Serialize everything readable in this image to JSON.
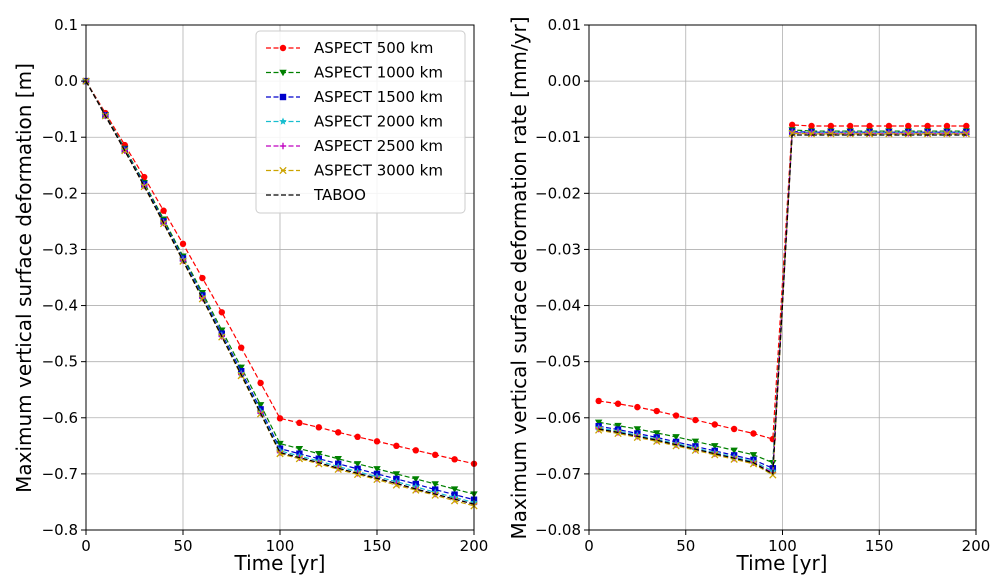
{
  "chart_data": [
    {
      "type": "line",
      "xlabel": "Time [yr]",
      "ylabel": "Maximum vertical surface deformation [m]",
      "xlim": [
        0,
        200
      ],
      "ylim": [
        -0.8,
        0.1
      ],
      "xticks": [
        "0",
        "50",
        "100",
        "150",
        "200"
      ],
      "yticks": [
        "0.1",
        "0.0",
        "−0.1",
        "−0.2",
        "−0.3",
        "−0.4",
        "−0.5",
        "−0.6",
        "−0.7",
        "−0.8"
      ],
      "grid": true,
      "legend_position": "top-right",
      "x": [
        0,
        10,
        20,
        30,
        40,
        50,
        60,
        70,
        80,
        90,
        100,
        110,
        120,
        130,
        140,
        150,
        160,
        170,
        180,
        190,
        200
      ],
      "series": [
        {
          "name": "ASPECT 500 km",
          "color": "#ff0000",
          "marker": "circle",
          "values": [
            0,
            -0.057,
            -0.114,
            -0.171,
            -0.231,
            -0.29,
            -0.351,
            -0.412,
            -0.475,
            -0.538,
            -0.601,
            -0.609,
            -0.617,
            -0.626,
            -0.634,
            -0.642,
            -0.65,
            -0.658,
            -0.666,
            -0.674,
            -0.682
          ]
        },
        {
          "name": "ASPECT 1000 km",
          "color": "#008000",
          "marker": "triangle-down",
          "values": [
            0,
            -0.06,
            -0.12,
            -0.181,
            -0.246,
            -0.312,
            -0.377,
            -0.444,
            -0.51,
            -0.577,
            -0.646,
            -0.655,
            -0.664,
            -0.673,
            -0.682,
            -0.691,
            -0.7,
            -0.709,
            -0.718,
            -0.727,
            -0.736
          ]
        },
        {
          "name": "ASPECT 1500 km",
          "color": "#0000cc",
          "marker": "square",
          "values": [
            0,
            -0.061,
            -0.122,
            -0.184,
            -0.25,
            -0.316,
            -0.382,
            -0.45,
            -0.517,
            -0.585,
            -0.655,
            -0.664,
            -0.673,
            -0.682,
            -0.691,
            -0.7,
            -0.709,
            -0.718,
            -0.728,
            -0.737,
            -0.746
          ]
        },
        {
          "name": "ASPECT 2000 km",
          "color": "#17becf",
          "marker": "star",
          "values": [
            0,
            -0.062,
            -0.123,
            -0.186,
            -0.252,
            -0.318,
            -0.385,
            -0.453,
            -0.521,
            -0.589,
            -0.659,
            -0.668,
            -0.677,
            -0.687,
            -0.696,
            -0.705,
            -0.714,
            -0.723,
            -0.733,
            -0.742,
            -0.751
          ]
        },
        {
          "name": "ASPECT 2500 km",
          "color": "#bf00bf",
          "marker": "plus",
          "values": [
            0,
            -0.062,
            -0.124,
            -0.187,
            -0.253,
            -0.32,
            -0.387,
            -0.455,
            -0.523,
            -0.592,
            -0.662,
            -0.671,
            -0.68,
            -0.69,
            -0.699,
            -0.708,
            -0.717,
            -0.727,
            -0.736,
            -0.745,
            -0.754
          ]
        },
        {
          "name": "ASPECT 3000 km",
          "color": "#cca300",
          "marker": "x",
          "values": [
            0,
            -0.062,
            -0.124,
            -0.188,
            -0.254,
            -0.321,
            -0.388,
            -0.456,
            -0.525,
            -0.593,
            -0.664,
            -0.673,
            -0.682,
            -0.692,
            -0.701,
            -0.71,
            -0.72,
            -0.729,
            -0.738,
            -0.748,
            -0.757
          ]
        },
        {
          "name": "TABOO",
          "color": "#000000",
          "marker": "none",
          "values": [
            0,
            -0.062,
            -0.124,
            -0.187,
            -0.253,
            -0.32,
            -0.387,
            -0.455,
            -0.523,
            -0.592,
            -0.662,
            -0.671,
            -0.68,
            -0.69,
            -0.699,
            -0.708,
            -0.717,
            -0.727,
            -0.736,
            -0.745,
            -0.754
          ]
        }
      ]
    },
    {
      "type": "line",
      "xlabel": "Time [yr]",
      "ylabel": "Maximum vertical surface deformation rate [mm/yr]",
      "xlim": [
        0,
        200
      ],
      "ylim": [
        -0.08,
        0.01
      ],
      "xticks": [
        "0",
        "50",
        "100",
        "150",
        "200"
      ],
      "yticks": [
        "0.01",
        "0.00",
        "−0.01",
        "−0.02",
        "−0.03",
        "−0.04",
        "−0.05",
        "−0.06",
        "−0.07",
        "−0.08"
      ],
      "grid": true,
      "x": [
        5,
        15,
        25,
        35,
        45,
        55,
        65,
        75,
        85,
        95,
        105,
        115,
        125,
        135,
        145,
        155,
        165,
        175,
        185,
        195
      ],
      "series": [
        {
          "name": "ASPECT 500 km",
          "color": "#ff0000",
          "marker": "circle",
          "values": [
            -0.057,
            -0.0575,
            -0.0581,
            -0.0588,
            -0.0596,
            -0.0604,
            -0.0612,
            -0.062,
            -0.0628,
            -0.0638,
            -0.0078,
            -0.008,
            -0.008,
            -0.008,
            -0.008,
            -0.008,
            -0.008,
            -0.008,
            -0.008,
            -0.008
          ]
        },
        {
          "name": "ASPECT 1000 km",
          "color": "#008000",
          "marker": "triangle-down",
          "values": [
            -0.0608,
            -0.0614,
            -0.062,
            -0.0627,
            -0.0634,
            -0.0642,
            -0.065,
            -0.0658,
            -0.0666,
            -0.068,
            -0.0087,
            -0.0089,
            -0.0089,
            -0.0089,
            -0.0089,
            -0.0089,
            -0.0089,
            -0.0089,
            -0.0089,
            -0.0089
          ]
        },
        {
          "name": "ASPECT 1500 km",
          "color": "#0000cc",
          "marker": "square",
          "values": [
            -0.0615,
            -0.0621,
            -0.0628,
            -0.0635,
            -0.0643,
            -0.0651,
            -0.0659,
            -0.0667,
            -0.0675,
            -0.069,
            -0.009,
            -0.0091,
            -0.0091,
            -0.0091,
            -0.0091,
            -0.0091,
            -0.0091,
            -0.0091,
            -0.0091,
            -0.0091
          ]
        },
        {
          "name": "ASPECT 2000 km",
          "color": "#17becf",
          "marker": "star",
          "values": [
            -0.0618,
            -0.0624,
            -0.0631,
            -0.0638,
            -0.0646,
            -0.0654,
            -0.0662,
            -0.067,
            -0.0678,
            -0.0695,
            -0.0091,
            -0.0092,
            -0.0092,
            -0.0092,
            -0.0092,
            -0.0092,
            -0.0092,
            -0.0092,
            -0.0092,
            -0.0092
          ]
        },
        {
          "name": "ASPECT 2500 km",
          "color": "#bf00bf",
          "marker": "plus",
          "values": [
            -0.062,
            -0.0626,
            -0.0633,
            -0.064,
            -0.0648,
            -0.0656,
            -0.0664,
            -0.0672,
            -0.068,
            -0.0698,
            -0.0092,
            -0.0093,
            -0.0093,
            -0.0093,
            -0.0093,
            -0.0093,
            -0.0093,
            -0.0093,
            -0.0093,
            -0.0093
          ]
        },
        {
          "name": "ASPECT 3000 km",
          "color": "#cca300",
          "marker": "x",
          "values": [
            -0.0622,
            -0.0628,
            -0.0635,
            -0.0642,
            -0.065,
            -0.0658,
            -0.0666,
            -0.0674,
            -0.0682,
            -0.0702,
            -0.0093,
            -0.0094,
            -0.0094,
            -0.0094,
            -0.0094,
            -0.0094,
            -0.0094,
            -0.0094,
            -0.0094,
            -0.0094
          ]
        },
        {
          "name": "TABOO",
          "color": "#000000",
          "marker": "none",
          "values": [
            -0.062,
            -0.0626,
            -0.0633,
            -0.064,
            -0.0648,
            -0.0656,
            -0.0664,
            -0.0672,
            -0.068,
            -0.07,
            -0.0096,
            -0.0096,
            -0.0096,
            -0.0096,
            -0.0096,
            -0.0096,
            -0.0096,
            -0.0096,
            -0.0096,
            -0.0096
          ]
        }
      ]
    }
  ]
}
